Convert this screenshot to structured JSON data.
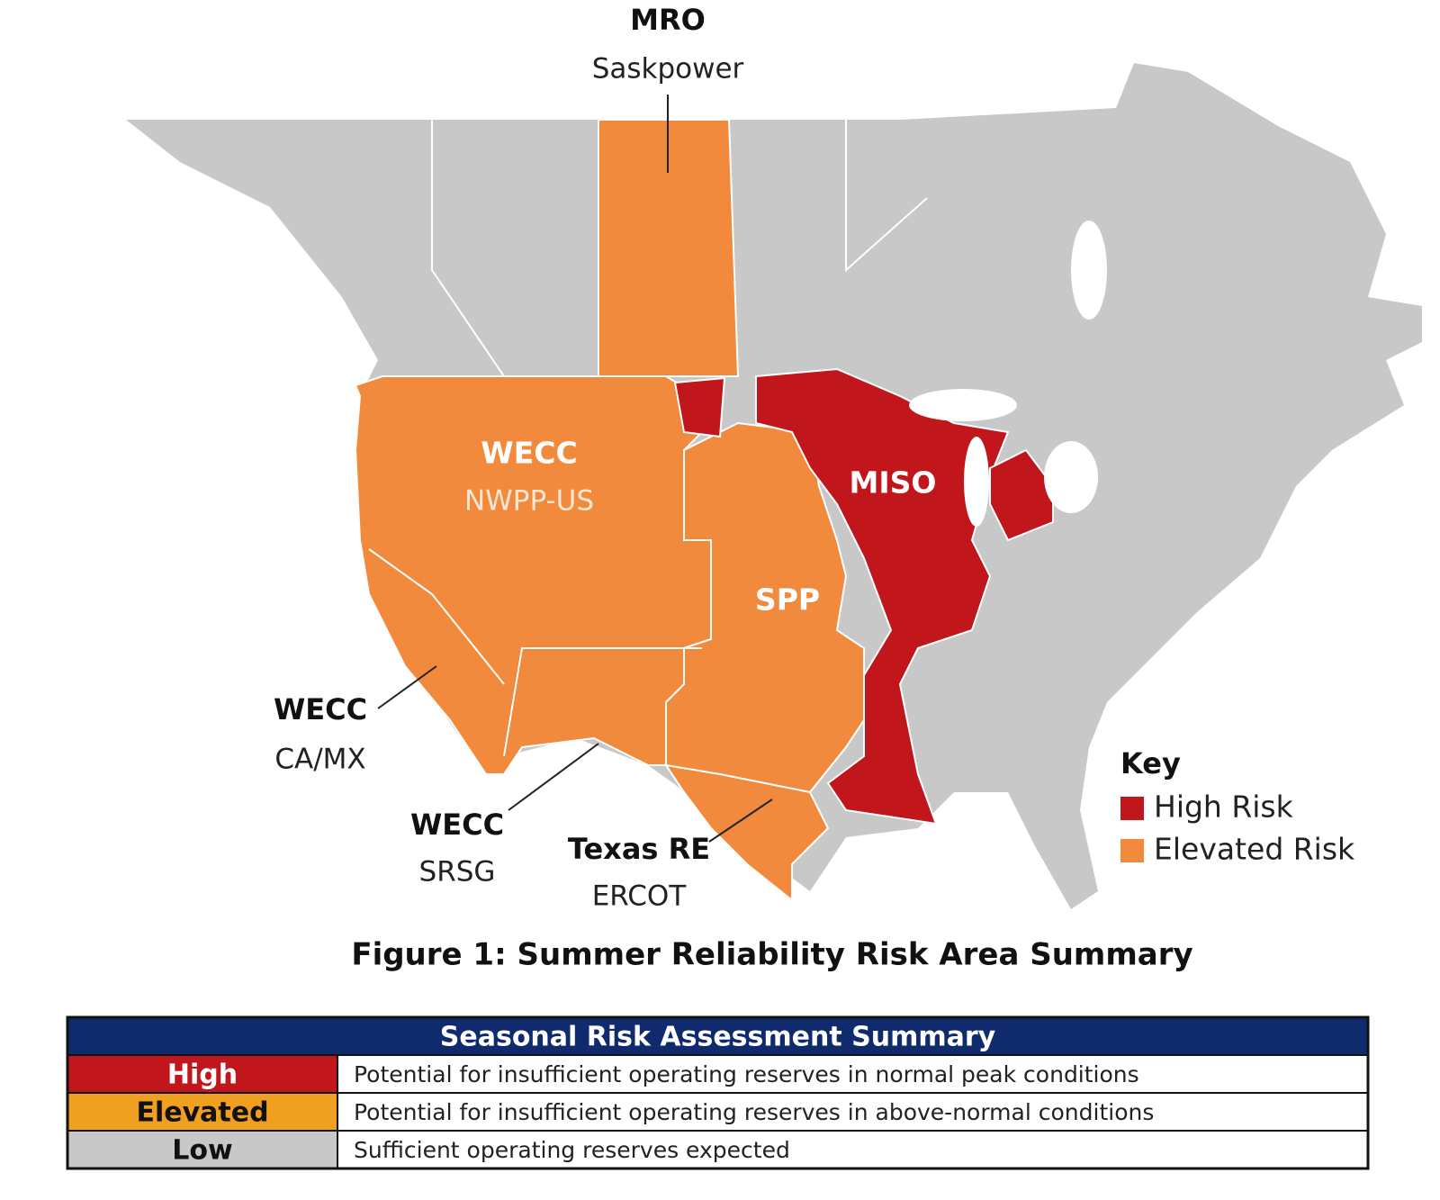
{
  "map": {
    "regions": [
      {
        "name": "MRO",
        "area": "Saskpower"
      },
      {
        "name": "WECC",
        "area": "NWPP-US"
      },
      {
        "name": "MISO"
      },
      {
        "name": "SPP"
      },
      {
        "name": "WECC",
        "area": "CA/MX"
      },
      {
        "name": "WECC",
        "area": "SRSG"
      },
      {
        "name": "Texas RE",
        "area": "ERCOT"
      }
    ],
    "key": {
      "title": "Key",
      "items": [
        {
          "label": "High Risk",
          "color": "#c0161c"
        },
        {
          "label": "Elevated Risk",
          "color": "#f18a3c"
        }
      ]
    },
    "caption": "Figure 1: Summer Reliability Risk Area Summary"
  },
  "table": {
    "title": "Seasonal Risk Assessment Summary",
    "header_color": "#0f2b6e",
    "rows": [
      {
        "level": "High",
        "description": "Potential for insufficient operating reserves in normal peak conditions",
        "color": "#c0161c"
      },
      {
        "level": "Elevated",
        "description": "Potential for insufficient operating reserves in above-normal conditions",
        "color": "#f0a020"
      },
      {
        "level": "Low",
        "description": "Sufficient operating reserves expected",
        "color": "#c8c8c8"
      }
    ]
  }
}
